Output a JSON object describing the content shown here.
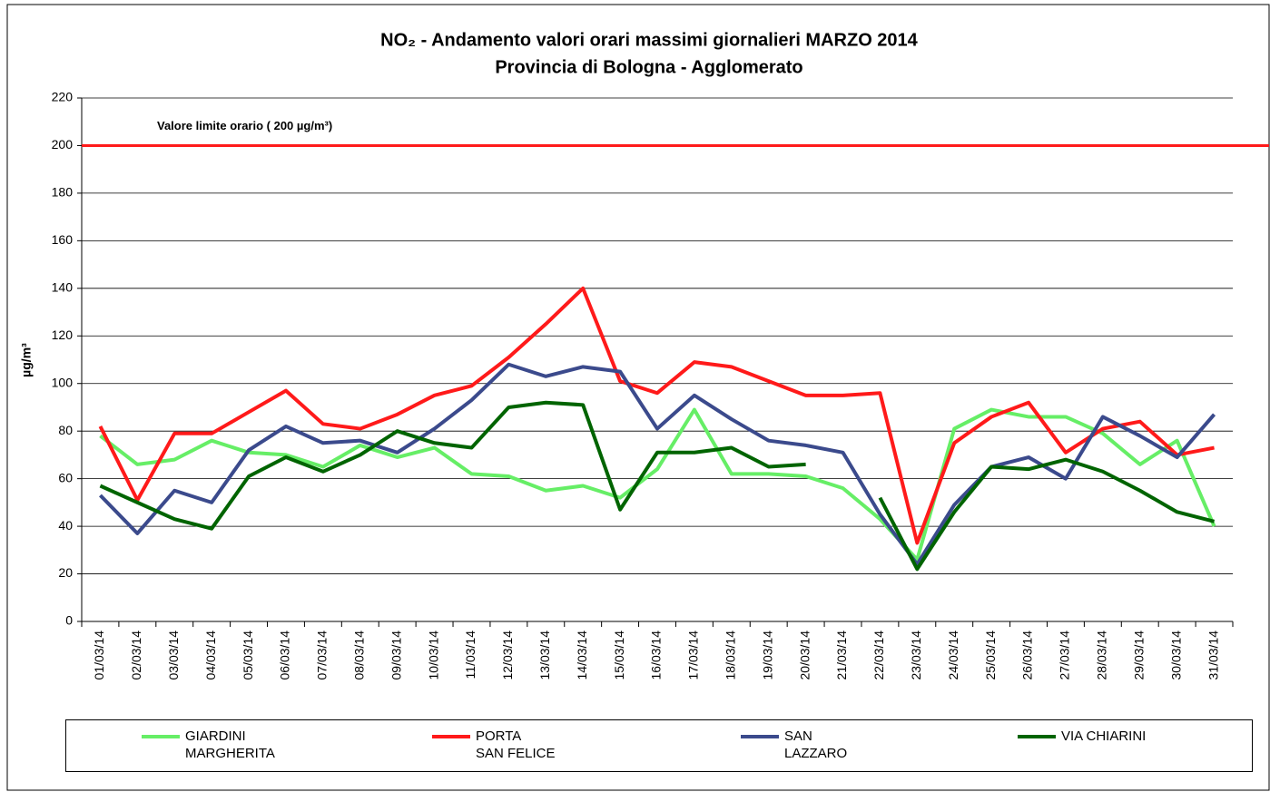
{
  "chart_data": {
    "type": "line",
    "title": "NO₂ - Andamento valori orari massimi giornalieri MARZO 2014",
    "subtitle": "Provincia di Bologna - Agglomerato",
    "y_label": "µg/m³",
    "categories": [
      "01/03/14",
      "02/03/14",
      "03/03/14",
      "04/03/14",
      "05/03/14",
      "06/03/14",
      "07/03/14",
      "08/03/14",
      "09/03/14",
      "10/03/14",
      "11/03/14",
      "12/03/14",
      "13/03/14",
      "14/03/14",
      "15/03/14",
      "16/03/14",
      "17/03/14",
      "18/03/14",
      "19/03/14",
      "20/03/14",
      "21/03/14",
      "22/03/14",
      "23/03/14",
      "24/03/14",
      "25/03/14",
      "26/03/14",
      "27/03/14",
      "28/03/14",
      "29/03/14",
      "30/03/14",
      "31/03/14"
    ],
    "series": [
      {
        "name": "GIARDINI\nMARGHERITA",
        "color": "#66ee66",
        "values": [
          78,
          66,
          68,
          76,
          71,
          70,
          65,
          74,
          69,
          73,
          62,
          61,
          55,
          57,
          52,
          64,
          89,
          62,
          62,
          61,
          56,
          43,
          26,
          81,
          89,
          86,
          86,
          79,
          66,
          76,
          40
        ]
      },
      {
        "name": "PORTA\nSAN FELICE",
        "color": "#ff1a1a",
        "values": [
          82,
          51,
          79,
          79,
          88,
          97,
          83,
          81,
          87,
          95,
          99,
          111,
          125,
          140,
          101,
          96,
          109,
          107,
          101,
          95,
          95,
          96,
          33,
          75,
          86,
          92,
          71,
          81,
          84,
          70,
          73
        ]
      },
      {
        "name": "SAN\nLAZZARO",
        "color": "#3b4a8c",
        "values": [
          53,
          37,
          55,
          50,
          72,
          82,
          75,
          76,
          71,
          81,
          93,
          108,
          103,
          107,
          105,
          81,
          95,
          85,
          76,
          74,
          71,
          45,
          24,
          49,
          65,
          69,
          60,
          86,
          78,
          69,
          87
        ]
      },
      {
        "name": "VIA CHIARINI",
        "color": "#006400",
        "values": [
          57,
          50,
          43,
          39,
          61,
          69,
          63,
          70,
          80,
          75,
          73,
          90,
          92,
          91,
          47,
          71,
          71,
          73,
          65,
          66,
          null,
          52,
          22,
          46,
          65,
          64,
          68,
          63,
          55,
          46,
          42
        ]
      }
    ],
    "reference_line": {
      "value": 200,
      "label": "Valore limite orario ( 200 µg/m³)",
      "color": "#ff1a1a"
    },
    "ylim": [
      0,
      220
    ],
    "yticks": [
      0,
      20,
      40,
      60,
      80,
      100,
      120,
      140,
      160,
      180,
      200,
      220
    ],
    "grid": true
  }
}
